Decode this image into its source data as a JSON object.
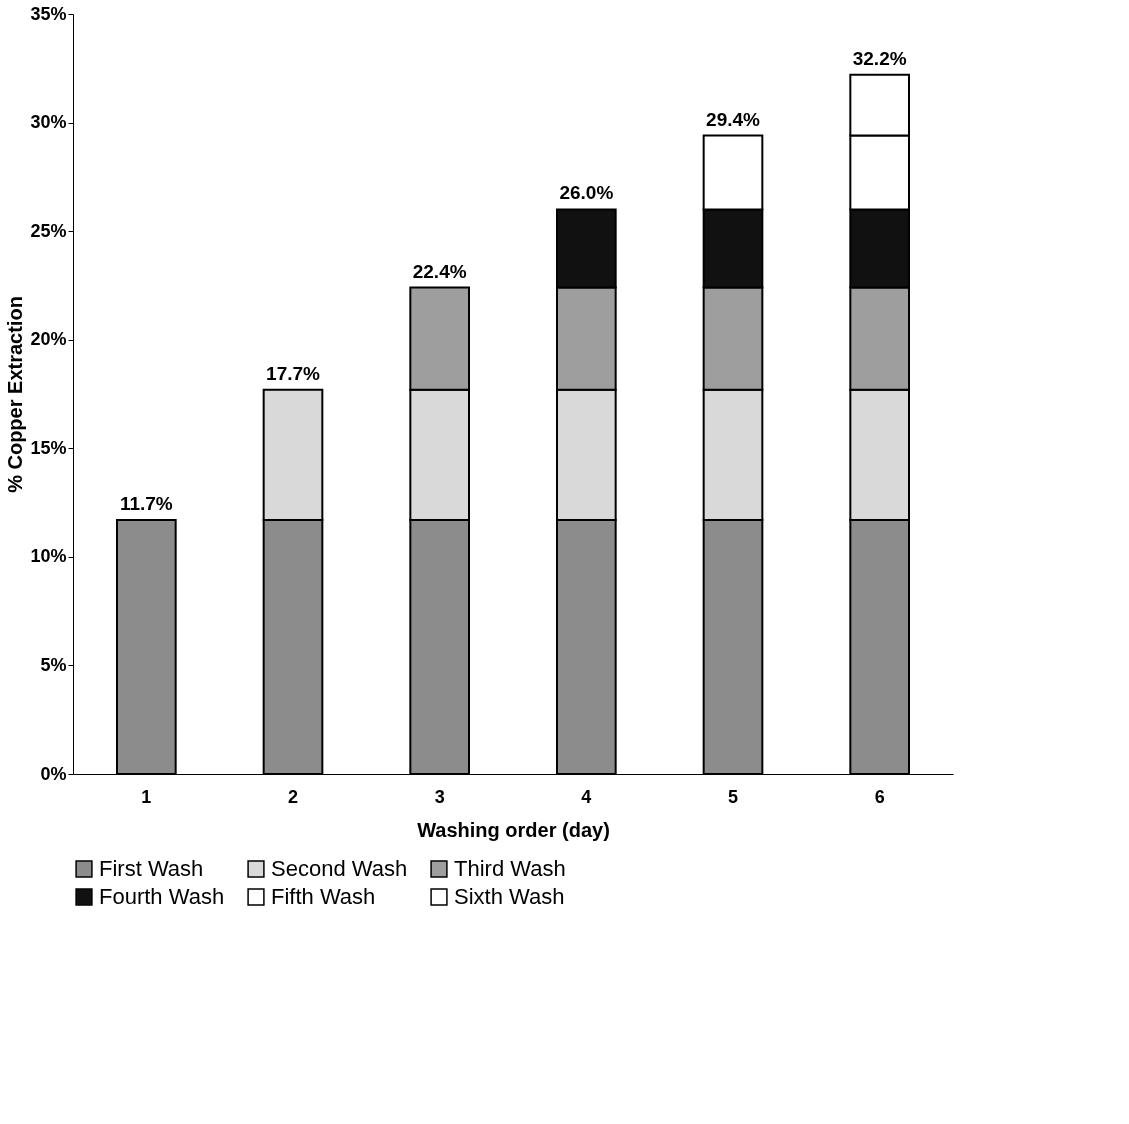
{
  "chart_data": {
    "type": "bar",
    "stacked": true,
    "xlabel": "Washing order (day)",
    "ylabel": "% Copper Extraction",
    "categories": [
      "1",
      "2",
      "3",
      "4",
      "5",
      "6"
    ],
    "series": [
      {
        "name": "First Wash",
        "color": "#8c8c8c",
        "values": [
          11.7,
          11.7,
          11.7,
          11.7,
          11.7,
          11.7
        ]
      },
      {
        "name": "Second Wash",
        "color": "#d9d9d9",
        "values": [
          null,
          6.0,
          6.0,
          6.0,
          6.0,
          6.0
        ]
      },
      {
        "name": "Third Wash",
        "color": "#9e9e9e",
        "values": [
          null,
          null,
          4.7,
          4.7,
          4.7,
          4.7
        ]
      },
      {
        "name": "Fourth Wash",
        "color": "#111111",
        "values": [
          null,
          null,
          null,
          3.6,
          3.6,
          3.6
        ]
      },
      {
        "name": "Fifth Wash",
        "color": "#ffffff",
        "values": [
          null,
          null,
          null,
          null,
          3.4,
          3.4
        ]
      },
      {
        "name": "Sixth Wash",
        "color": "#ffffff",
        "values": [
          null,
          null,
          null,
          null,
          null,
          2.8
        ]
      }
    ],
    "totals": [
      "11.7%",
      "17.7%",
      "22.4%",
      "26.0%",
      "29.4%",
      "32.2%"
    ],
    "ylim": [
      0,
      35
    ],
    "yticks": [
      {
        "value": 0,
        "label": "0%"
      },
      {
        "value": 5,
        "label": "5%"
      },
      {
        "value": 10,
        "label": "10%"
      },
      {
        "value": 15,
        "label": "15%"
      },
      {
        "value": 20,
        "label": "20%"
      },
      {
        "value": 25,
        "label": "25%"
      },
      {
        "value": 30,
        "label": "30%"
      },
      {
        "value": 35,
        "label": "35%"
      }
    ],
    "grid": false,
    "legend": "bottom"
  }
}
